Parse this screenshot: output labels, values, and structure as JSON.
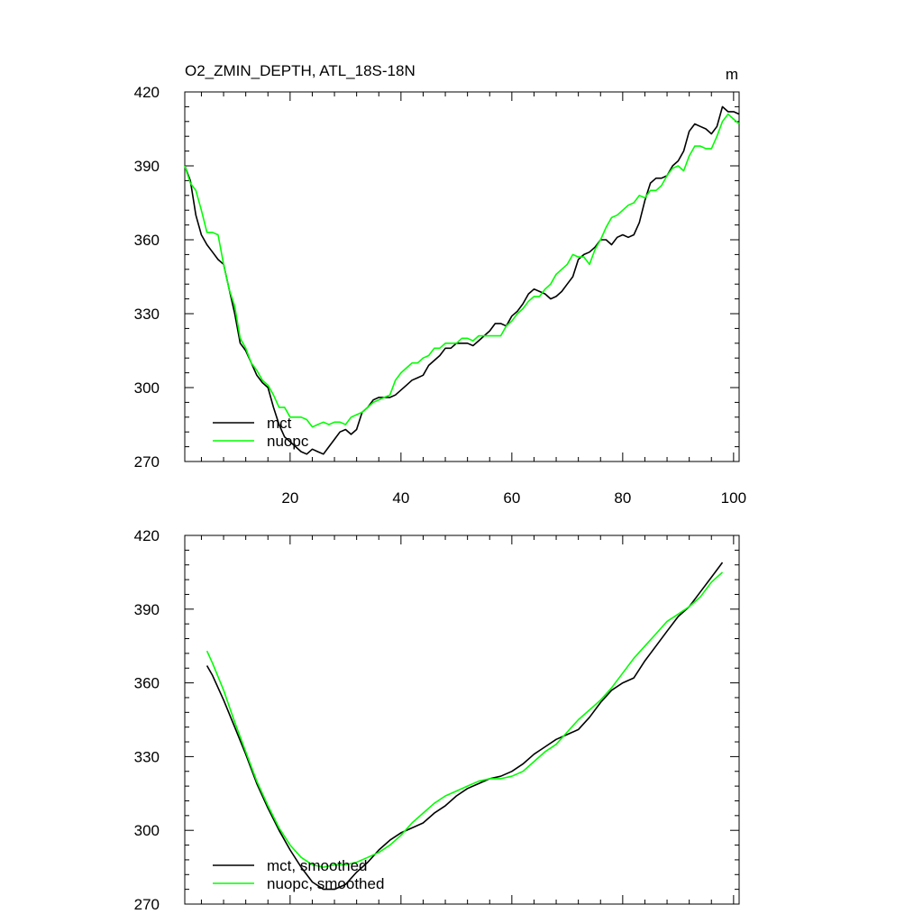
{
  "chart_data": [
    {
      "type": "line",
      "title": "O2_ZMIN_DEPTH, ATL_18S-18N",
      "units": "m",
      "xlim": [
        1,
        101
      ],
      "ylim": [
        270,
        420
      ],
      "x_ticks": [
        20,
        40,
        60,
        80,
        100
      ],
      "y_ticks": [
        270,
        300,
        330,
        360,
        390,
        420
      ],
      "x_tick_labels": [
        "20",
        "40",
        "60",
        "80",
        "100"
      ],
      "y_tick_labels": [
        "270",
        "300",
        "330",
        "360",
        "390",
        "420"
      ],
      "legend_position": "bottom-left",
      "series": [
        {
          "name": "mct",
          "color": "#000000",
          "x": [
            1,
            2,
            3,
            4,
            5,
            6,
            7,
            8,
            9,
            10,
            11,
            12,
            13,
            14,
            15,
            16,
            17,
            18,
            19,
            20,
            21,
            22,
            23,
            24,
            25,
            26,
            27,
            28,
            29,
            30,
            31,
            32,
            33,
            34,
            35,
            36,
            37,
            38,
            39,
            40,
            41,
            42,
            43,
            44,
            45,
            46,
            47,
            48,
            49,
            50,
            51,
            52,
            53,
            54,
            55,
            56,
            57,
            58,
            59,
            60,
            61,
            62,
            63,
            64,
            65,
            66,
            67,
            68,
            69,
            70,
            71,
            72,
            73,
            74,
            75,
            76,
            77,
            78,
            79,
            80,
            81,
            82,
            83,
            84,
            85,
            86,
            87,
            88,
            89,
            90,
            91,
            92,
            93,
            94,
            95,
            96,
            97,
            98,
            99,
            100,
            101
          ],
          "values": [
            390,
            384,
            370,
            362,
            358,
            355,
            352,
            350,
            340,
            330,
            318,
            315,
            310,
            305,
            302,
            300,
            292,
            285,
            280,
            278,
            276,
            274,
            273,
            275,
            274,
            273,
            276,
            279,
            282,
            283,
            281,
            283,
            290,
            292,
            295,
            296,
            296,
            296,
            297,
            299,
            301,
            303,
            304,
            305,
            309,
            311,
            313,
            316,
            316,
            318,
            318,
            318,
            317,
            319,
            321,
            323,
            326,
            326,
            325,
            329,
            331,
            334,
            338,
            340,
            339,
            338,
            336,
            337,
            339,
            342,
            345,
            352,
            354,
            355,
            357,
            360,
            360,
            358,
            361,
            362,
            361,
            362,
            367,
            376,
            383,
            385,
            385,
            386,
            390,
            392,
            396,
            404,
            407,
            406,
            405,
            403,
            406,
            414,
            412,
            412,
            411
          ]
        },
        {
          "name": "nuopc",
          "color": "#00ff00",
          "x": [
            1,
            2,
            3,
            4,
            5,
            6,
            7,
            8,
            9,
            10,
            11,
            12,
            13,
            14,
            15,
            16,
            17,
            18,
            19,
            20,
            21,
            22,
            23,
            24,
            25,
            26,
            27,
            28,
            29,
            30,
            31,
            32,
            33,
            34,
            35,
            36,
            37,
            38,
            39,
            40,
            41,
            42,
            43,
            44,
            45,
            46,
            47,
            48,
            49,
            50,
            51,
            52,
            53,
            54,
            55,
            56,
            57,
            58,
            59,
            60,
            61,
            62,
            63,
            64,
            65,
            66,
            67,
            68,
            69,
            70,
            71,
            72,
            73,
            74,
            75,
            76,
            77,
            78,
            79,
            80,
            81,
            82,
            83,
            84,
            85,
            86,
            87,
            88,
            89,
            90,
            91,
            92,
            93,
            94,
            95,
            96,
            97,
            98,
            99,
            100,
            101
          ],
          "values": [
            390,
            383,
            380,
            372,
            363,
            363,
            362,
            350,
            340,
            333,
            320,
            316,
            310,
            307,
            303,
            301,
            297,
            292,
            292,
            288,
            288,
            288,
            287,
            284,
            285,
            286,
            285,
            286,
            286,
            285,
            288,
            289,
            290,
            292,
            294,
            295,
            296,
            297,
            303,
            306,
            308,
            310,
            310,
            312,
            313,
            316,
            316,
            318,
            318,
            318,
            320,
            320,
            319,
            321,
            321,
            321,
            321,
            321,
            325,
            327,
            330,
            332,
            335,
            337,
            337,
            340,
            342,
            346,
            348,
            350,
            354,
            353,
            353,
            350,
            356,
            360,
            365,
            369,
            370,
            372,
            374,
            375,
            378,
            377,
            380,
            380,
            382,
            386,
            389,
            390,
            388,
            394,
            398,
            398,
            397,
            397,
            402,
            408,
            411,
            409,
            407
          ]
        }
      ]
    },
    {
      "type": "line",
      "title": "",
      "xlim": [
        1,
        101
      ],
      "ylim": [
        270,
        420
      ],
      "x_ticks": [
        20,
        40,
        60,
        80,
        100
      ],
      "y_ticks": [
        270,
        300,
        330,
        360,
        390,
        420
      ],
      "x_tick_labels": [],
      "y_tick_labels": [
        "270",
        "300",
        "330",
        "360",
        "390",
        "420"
      ],
      "legend_position": "bottom-left",
      "series": [
        {
          "name": "mct, smoothed",
          "color": "#000000",
          "x": [
            5,
            6,
            8,
            10,
            12,
            14,
            16,
            18,
            20,
            22,
            24,
            26,
            28,
            30,
            32,
            34,
            36,
            38,
            40,
            42,
            44,
            46,
            48,
            50,
            52,
            54,
            56,
            58,
            60,
            62,
            64,
            66,
            68,
            70,
            72,
            74,
            76,
            78,
            80,
            82,
            84,
            86,
            88,
            90,
            92,
            94,
            96,
            98
          ],
          "values": [
            367,
            363,
            353,
            342,
            331,
            319,
            309,
            300,
            292,
            285,
            279,
            276,
            276,
            278,
            283,
            287,
            292,
            296,
            299,
            301,
            303,
            307,
            310,
            314,
            317,
            319,
            321,
            322,
            324,
            327,
            331,
            334,
            337,
            339,
            341,
            346,
            352,
            357,
            360,
            362,
            369,
            375,
            381,
            387,
            391,
            397,
            403,
            409
          ]
        },
        {
          "name": "nuopc, smoothed",
          "color": "#00ff00",
          "x": [
            5,
            6,
            8,
            10,
            12,
            14,
            16,
            18,
            20,
            22,
            24,
            26,
            28,
            30,
            32,
            34,
            36,
            38,
            40,
            42,
            44,
            46,
            48,
            50,
            52,
            54,
            56,
            58,
            60,
            62,
            64,
            66,
            68,
            70,
            72,
            74,
            76,
            78,
            80,
            82,
            84,
            86,
            88,
            90,
            92,
            94,
            96,
            98
          ],
          "values": [
            373,
            368,
            357,
            344,
            332,
            320,
            310,
            301,
            294,
            289,
            286,
            285,
            286,
            286,
            287,
            289,
            291,
            294,
            298,
            303,
            307,
            311,
            314,
            316,
            318,
            320,
            321,
            321,
            322,
            324,
            328,
            332,
            335,
            340,
            345,
            349,
            353,
            358,
            364,
            370,
            375,
            380,
            385,
            388,
            391,
            395,
            401,
            405
          ]
        }
      ]
    }
  ]
}
